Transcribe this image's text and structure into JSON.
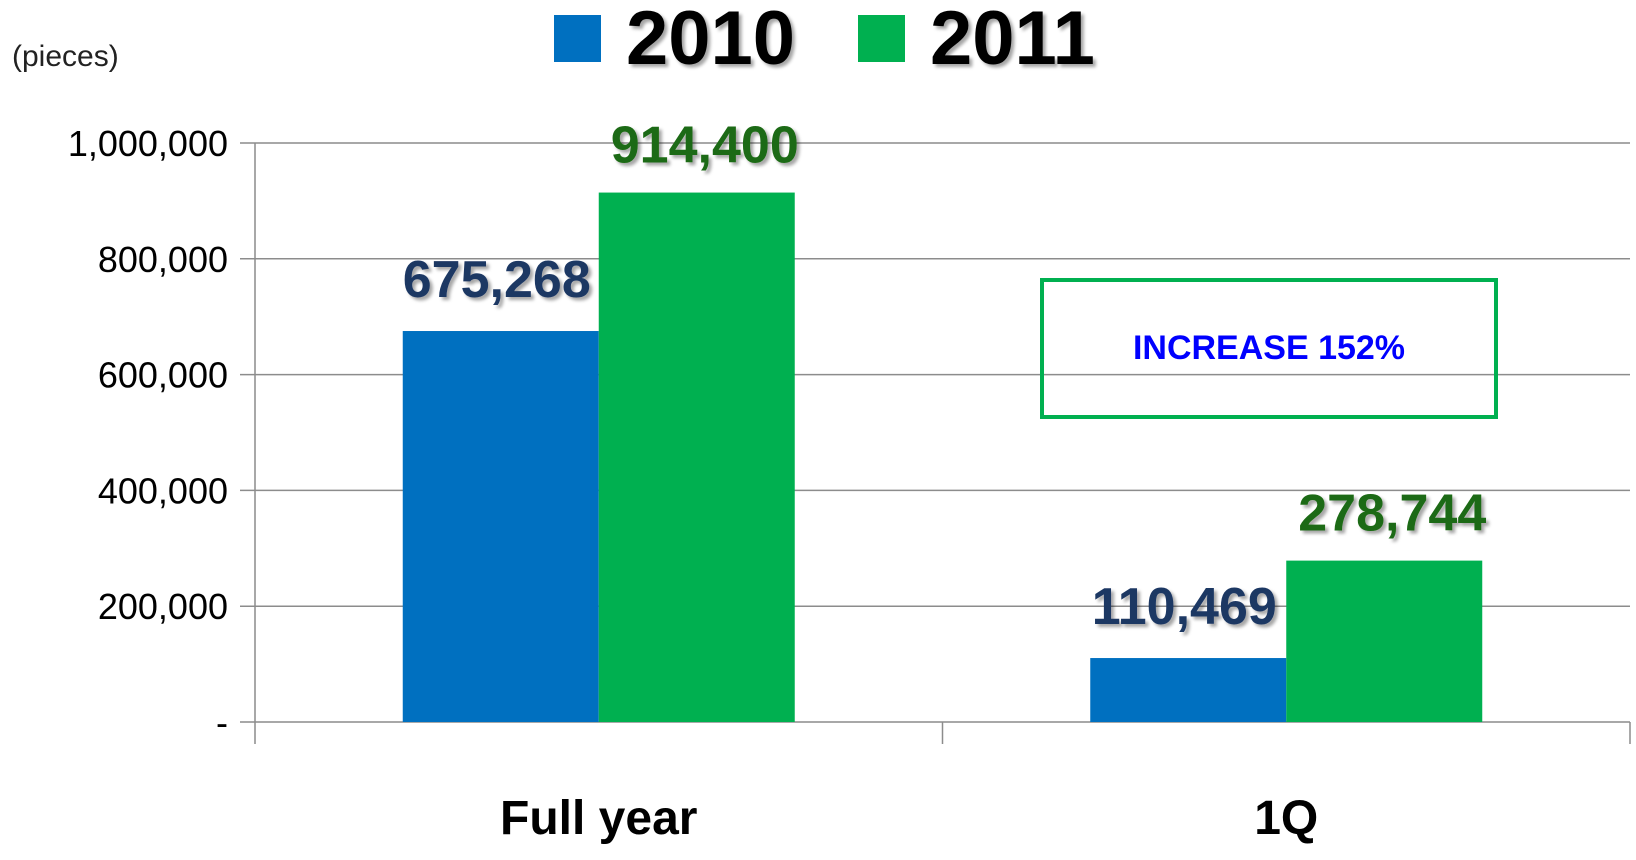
{
  "chart_data": {
    "type": "bar",
    "unit_label": "(pieces)",
    "categories": [
      "Full year",
      "1Q"
    ],
    "series": [
      {
        "name": "2010",
        "values": [
          675268,
          110469
        ],
        "labels": [
          "675,268",
          "110,469"
        ],
        "color": "#0070C0",
        "label_color": "#1F3864"
      },
      {
        "name": "2011",
        "values": [
          914400,
          278744
        ],
        "labels": [
          "914,400",
          "278,744"
        ],
        "color": "#00B050",
        "label_color": "#1E6B14"
      }
    ],
    "ylim": [
      0,
      1000000
    ],
    "yticks": [
      0,
      200000,
      400000,
      600000,
      800000,
      1000000
    ],
    "ytick_labels": [
      "-",
      "200,000",
      "400,000",
      "600,000",
      "800,000",
      "1,000,000"
    ],
    "grid": true,
    "legend_position": "top-center",
    "annotation": {
      "text": "INCREASE 152%",
      "text_color": "#0000FF",
      "border_color": "#00B050"
    }
  }
}
